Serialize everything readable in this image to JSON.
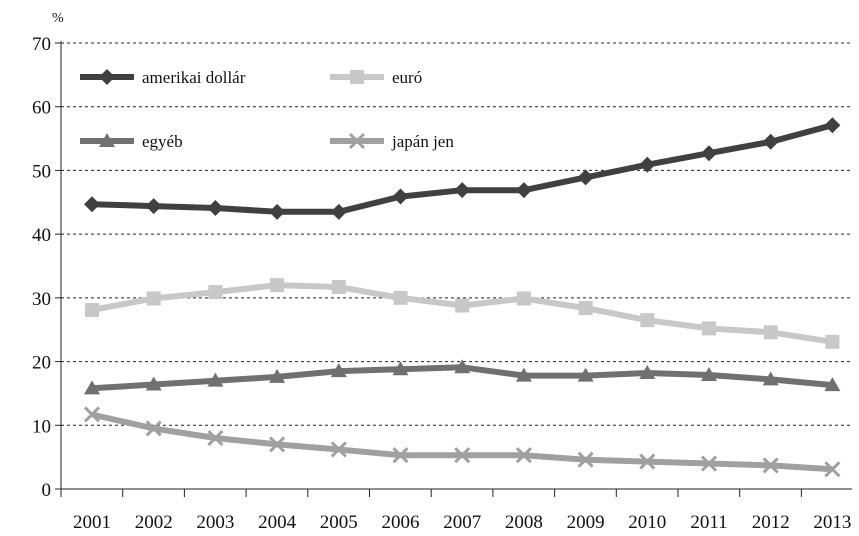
{
  "chart_data": {
    "type": "line",
    "unit_label": "%",
    "x": [
      "2001",
      "2002",
      "2003",
      "2004",
      "2005",
      "2006",
      "2007",
      "2008",
      "2009",
      "2010",
      "2011",
      "2012",
      "2013"
    ],
    "ylim": [
      0,
      70
    ],
    "yticks": [
      0,
      10,
      20,
      30,
      40,
      50,
      60,
      70
    ],
    "grid": "horizontal dashed",
    "legend_position": "top-left, inside",
    "series": [
      {
        "name": "amerikai dollár",
        "color": "#404040",
        "marker": "diamond",
        "values": [
          44.7,
          44.4,
          44.1,
          43.5,
          43.5,
          45.9,
          46.9,
          46.9,
          48.9,
          50.9,
          52.7,
          54.5,
          57.1
        ]
      },
      {
        "name": "euró",
        "color": "#c8c8c8",
        "marker": "square",
        "values": [
          28.1,
          29.9,
          30.9,
          32.0,
          31.7,
          30.0,
          28.8,
          29.9,
          28.4,
          26.5,
          25.2,
          24.6,
          23.1
        ]
      },
      {
        "name": "egyéb",
        "color": "#707070",
        "marker": "triangle",
        "values": [
          15.8,
          16.4,
          17.0,
          17.6,
          18.5,
          18.8,
          19.1,
          17.8,
          17.8,
          18.2,
          17.9,
          17.2,
          16.3
        ]
      },
      {
        "name": "japán jen",
        "color": "#a0a0a0",
        "marker": "x",
        "values": [
          11.7,
          9.5,
          8.0,
          7.0,
          6.2,
          5.3,
          5.3,
          5.3,
          4.6,
          4.3,
          4.0,
          3.7,
          3.1
        ]
      }
    ]
  }
}
